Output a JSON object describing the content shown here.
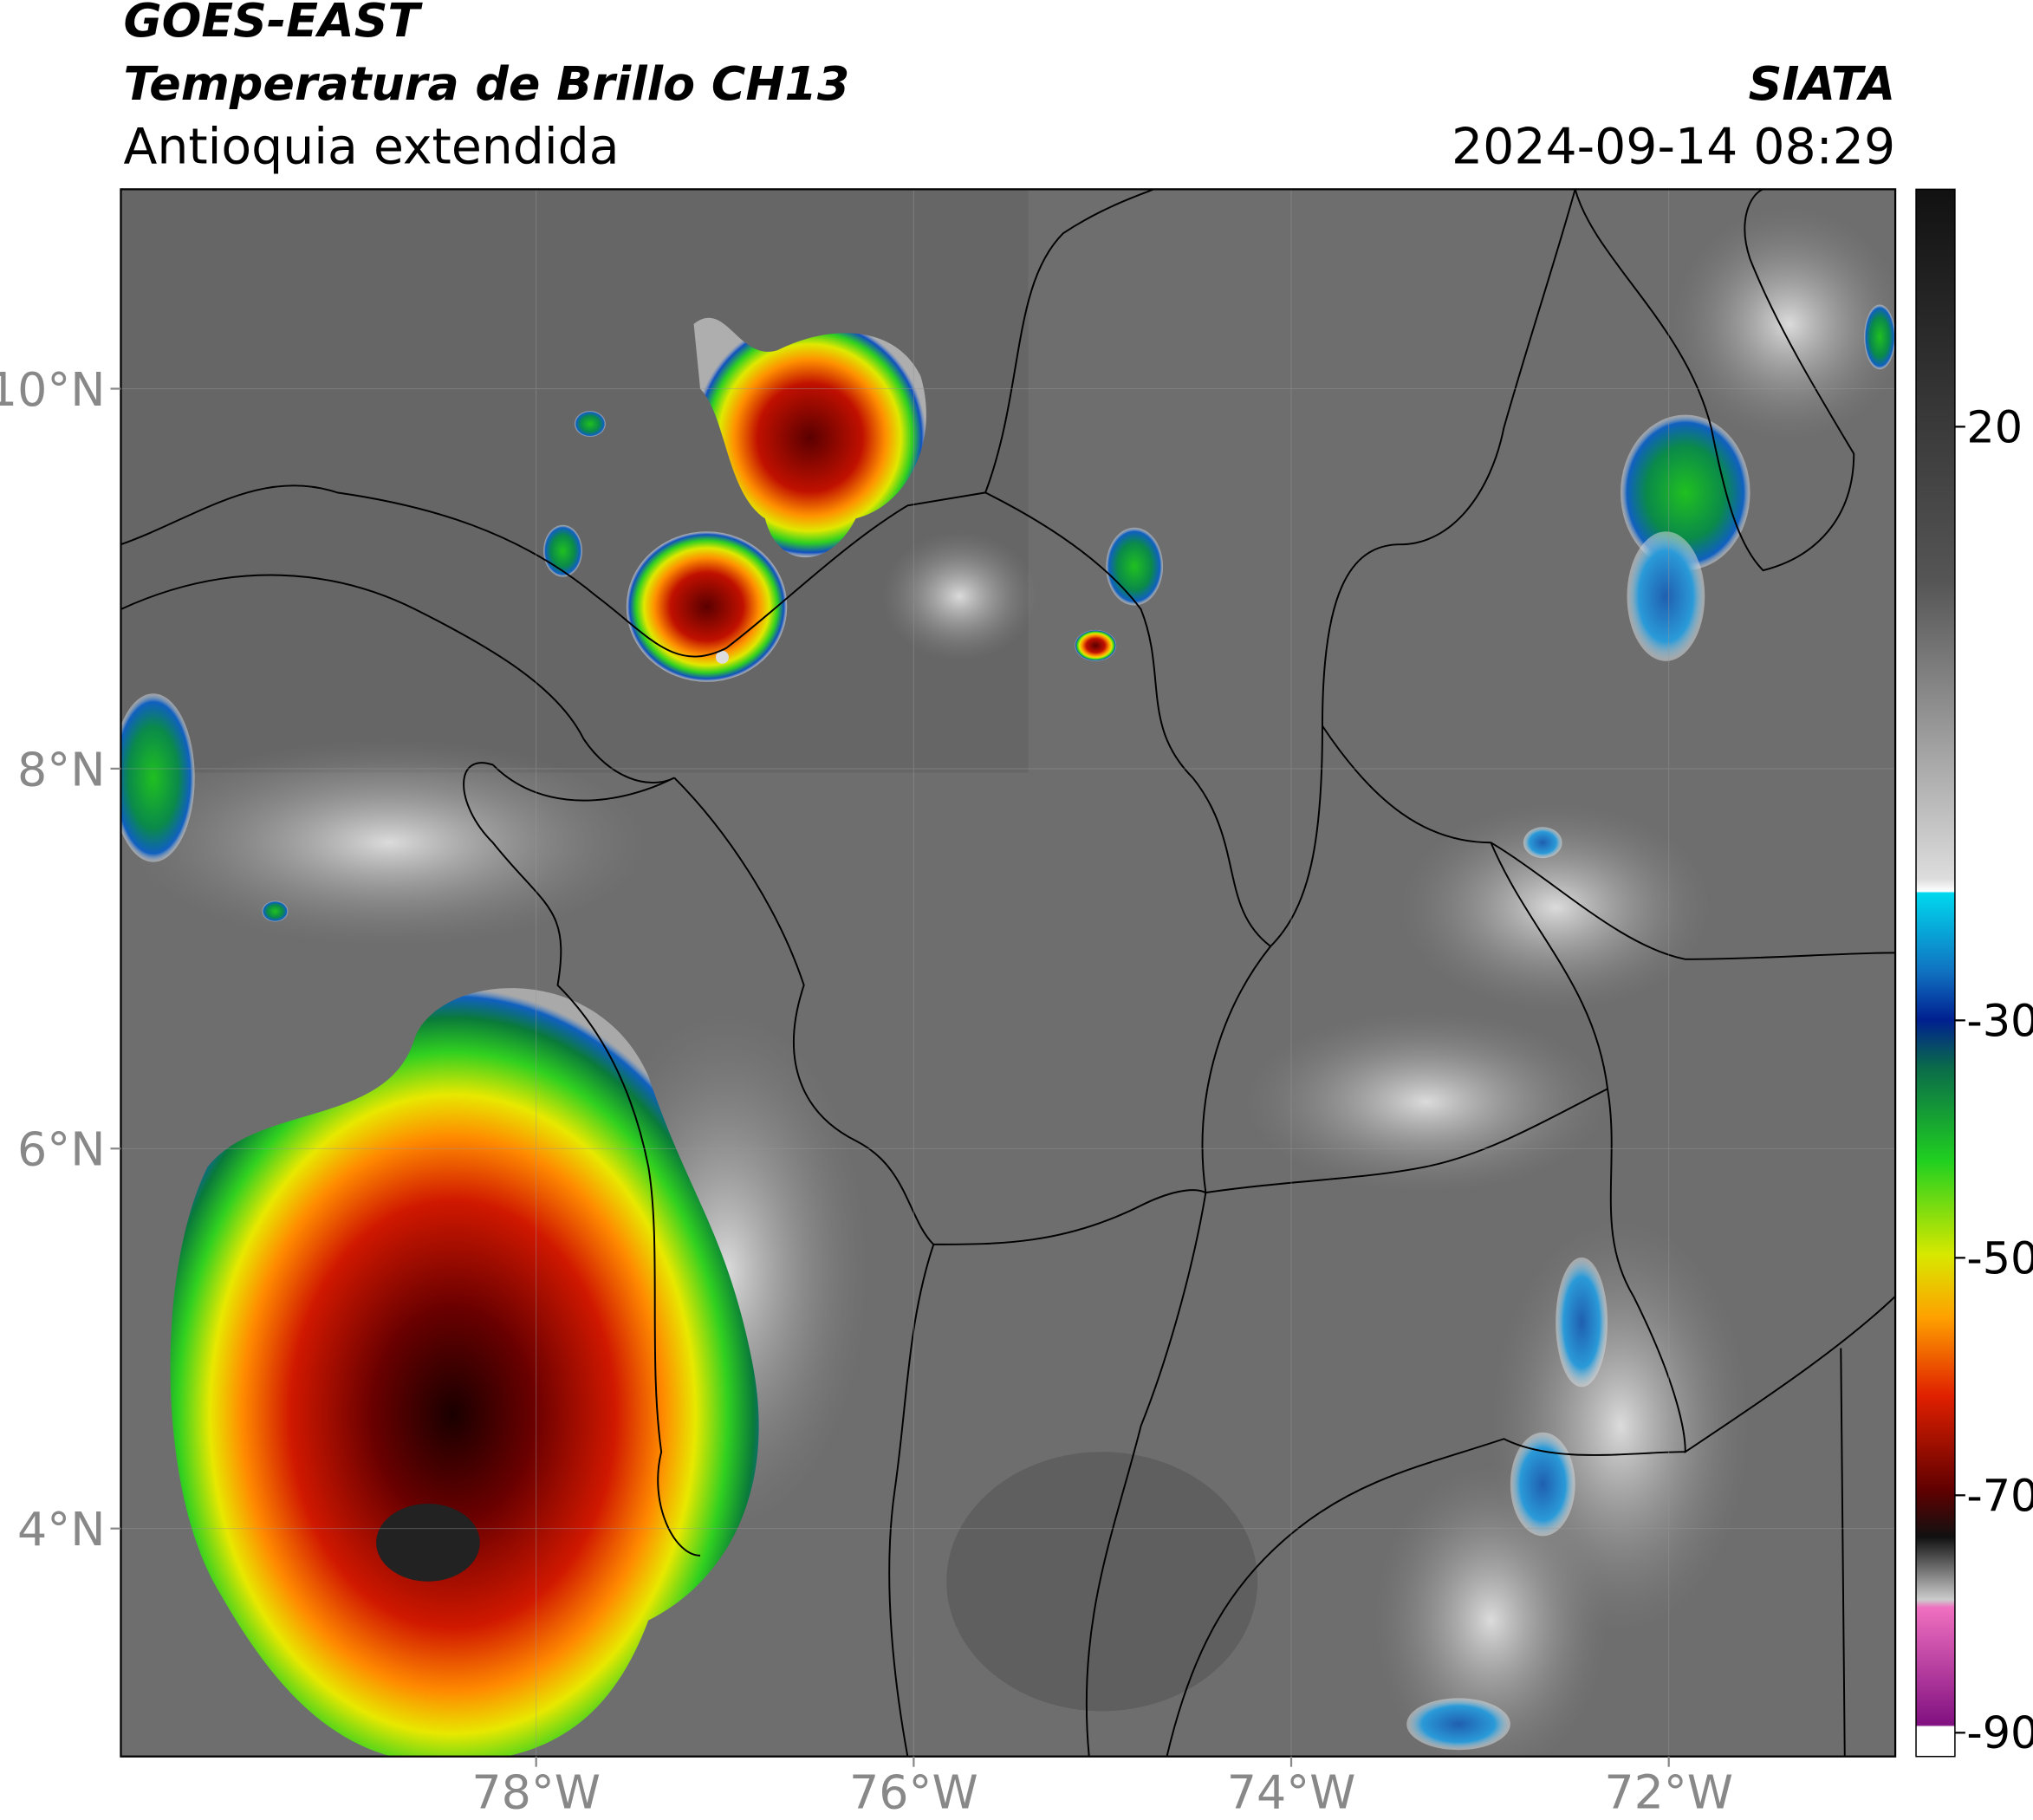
{
  "header": {
    "satellite": "GOES-EAST",
    "product": "Temperatura de Brillo CH13",
    "region": "Antioquia extendida",
    "source": "SIATA",
    "datetime": "2024-09-14 08:29"
  },
  "map": {
    "xlim": [
      -80.2,
      -70.8
    ],
    "ylim": [
      2.8,
      11.05
    ],
    "xticks": [
      {
        "value": -78,
        "label": "78°W"
      },
      {
        "value": -76,
        "label": "76°W"
      },
      {
        "value": -74,
        "label": "74°W"
      },
      {
        "value": -72,
        "label": "72°W"
      }
    ],
    "yticks": [
      {
        "value": 10,
        "label": "10°N"
      },
      {
        "value": 8,
        "label": "8°N"
      },
      {
        "value": 6,
        "label": "6°N"
      },
      {
        "value": 4,
        "label": "4°N"
      }
    ]
  },
  "colorbar": {
    "lim": [
      -92,
      40
    ],
    "ticks": [
      20,
      -30,
      -50,
      -70,
      -90
    ]
  }
}
